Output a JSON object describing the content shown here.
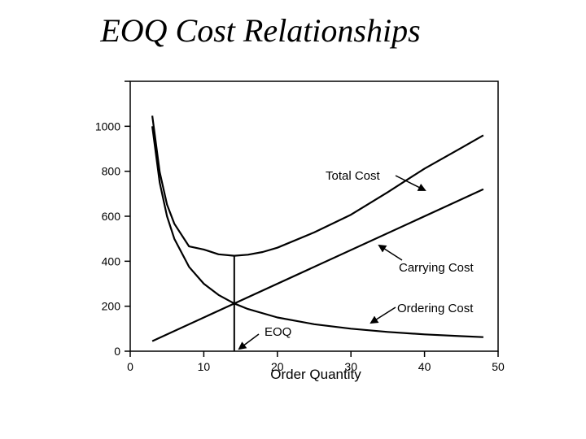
{
  "chart_data": {
    "type": "line",
    "title": "EOQ Cost Relationships",
    "xlabel": "Order Quantity",
    "ylabel": "",
    "xlim": [
      0,
      50
    ],
    "ylim": [
      0,
      1200
    ],
    "xticks": [
      0,
      10,
      20,
      30,
      40,
      50
    ],
    "yticks": [
      0,
      200,
      400,
      600,
      800,
      1000
    ],
    "grid": false,
    "series": [
      {
        "id": "total",
        "x": [
          3,
          4,
          5,
          6,
          8,
          10,
          12,
          14.14,
          16,
          18,
          20,
          25,
          30,
          35,
          40,
          45,
          48
        ],
        "y": [
          1046.7,
          797,
          652,
          566.7,
          466,
          452,
          430.7,
          424.3,
          429,
          441,
          460,
          528,
          606.7,
          707,
          811.7,
          904,
          960
        ]
      },
      {
        "id": "carrying",
        "x": [
          3,
          48
        ],
        "y": [
          45,
          720
        ]
      },
      {
        "id": "ordering",
        "x": [
          3,
          4,
          5,
          6,
          8,
          10,
          12,
          14.14,
          16,
          20,
          25,
          30,
          35,
          40,
          45,
          48
        ],
        "y": [
          1000,
          750,
          600,
          500,
          375,
          300,
          250,
          212.1,
          187.5,
          150,
          120,
          100,
          85.7,
          75,
          66.7,
          62.5
        ]
      }
    ],
    "eoq": {
      "x": 14.14,
      "y_top": 424.3,
      "y_cross": 212.1
    },
    "annotations": {
      "total": "Total Cost",
      "carrying": "Carrying Cost",
      "ordering": "Ordering Cost",
      "eoq": "EOQ"
    }
  }
}
